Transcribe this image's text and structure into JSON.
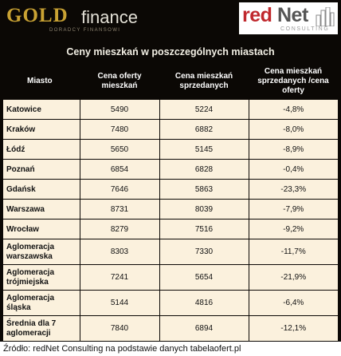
{
  "logos": {
    "gold": {
      "word": "GOLD",
      "word2": "finance",
      "sub": "DORADCY FINANSOWI"
    },
    "rednet": {
      "red": "red",
      "gray": "Net",
      "sub": "CONSULTING"
    }
  },
  "title": "Ceny mieszkań w poszczególnych miastach",
  "table": {
    "headers": [
      "Miasto",
      "Cena oferty mieszkań",
      "Cena mieszkań sprzedanych",
      "Cena mieszkań sprzedanych /cena oferty"
    ],
    "rows": [
      [
        "Katowice",
        "5490",
        "5224",
        "-4,8%"
      ],
      [
        "Kraków",
        "7480",
        "6882",
        "-8,0%"
      ],
      [
        "Łódź",
        "5650",
        "5145",
        "-8,9%"
      ],
      [
        "Poznań",
        "6854",
        "6828",
        "-0,4%"
      ],
      [
        "Gdańsk",
        "7646",
        "5863",
        "-23,3%"
      ],
      [
        "Warszawa",
        "8731",
        "8039",
        "-7,9%"
      ],
      [
        "Wrocław",
        "8279",
        "7516",
        "-9,2%"
      ],
      [
        "Aglomeracja warszawska",
        "8303",
        "7330",
        "-11,7%"
      ],
      [
        "Aglomeracja trójmiejska",
        "7241",
        "5654",
        "-21,9%"
      ],
      [
        "Aglomeracja śląska",
        "5144",
        "4816",
        "-6,4%"
      ],
      [
        "Średnia dla 7 aglomeracji",
        "7840",
        "6894",
        "-12,1%"
      ]
    ]
  },
  "source": "Źródło: redNet Consulting na podstawie danych tabelaofert.pl",
  "colors": {
    "background": "#0b0805",
    "cell": "#fbf1dd",
    "gold": "#c9a233",
    "red": "#c0282d"
  }
}
